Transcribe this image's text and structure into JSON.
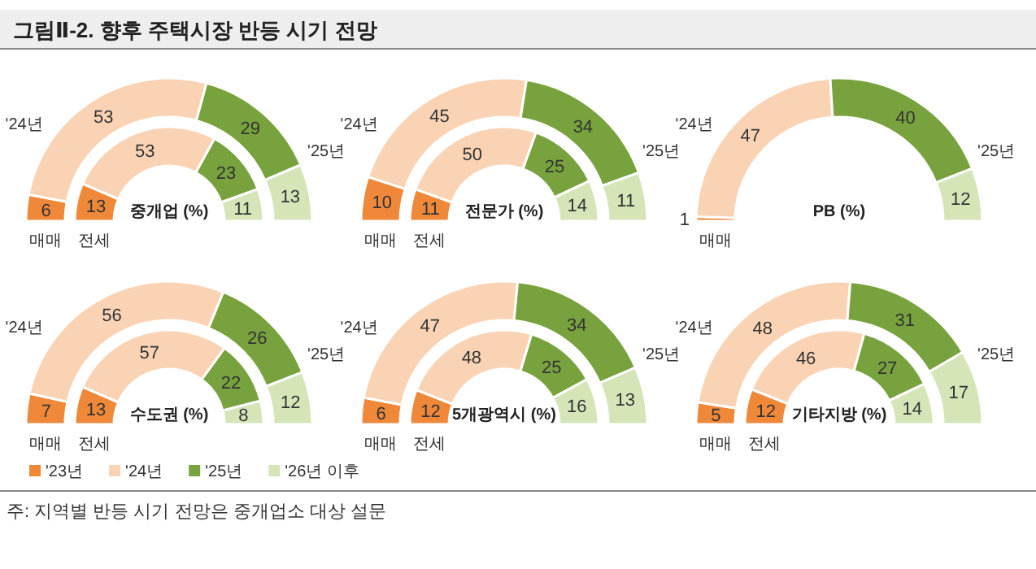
{
  "chart_data": [
    {
      "type": "donut",
      "title": "그림Ⅱ-2. 향후 주택시장 반등 시기  전망",
      "subtitle": "중개업 (%)",
      "colors": [
        "#f0883a",
        "#fad3b4",
        "#78a23e",
        "#d5e5b8"
      ],
      "data_labels": true,
      "annotations": [
        "'24년",
        "'25년"
      ],
      "series": [
        {
          "name": "매매",
          "values": [
            6,
            53,
            29,
            13
          ]
        },
        {
          "name": "전세",
          "values": [
            13,
            53,
            23,
            11
          ]
        }
      ]
    },
    {
      "type": "donut",
      "subtitle": "전문가 (%)",
      "colors": [
        "#f0883a",
        "#fad3b4",
        "#78a23e",
        "#d5e5b8"
      ],
      "data_labels": true,
      "annotations": [
        "'24년",
        "'25년"
      ],
      "series": [
        {
          "name": "매매",
          "values": [
            10,
            45,
            34,
            11
          ]
        },
        {
          "name": "전세",
          "values": [
            11,
            50,
            25,
            14
          ]
        }
      ]
    },
    {
      "type": "donut",
      "subtitle": "PB (%)",
      "colors": [
        "#f0883a",
        "#fad3b4",
        "#78a23e",
        "#d5e5b8"
      ],
      "data_labels": true,
      "annotations": [
        "'24년",
        "'25년"
      ],
      "series": [
        {
          "name": "매매",
          "values": [
            1,
            47,
            40,
            12
          ]
        }
      ]
    },
    {
      "type": "donut",
      "subtitle": "수도권 (%)",
      "categories": [
        "'23년",
        "'24년",
        "'25년",
        "'26년 이후"
      ],
      "colors": [
        "#f0883a",
        "#fad3b4",
        "#78a23e",
        "#d5e5b8"
      ],
      "data_labels": true,
      "legend": "bottom",
      "annotations": [
        "'24년",
        "'25년",
        "주: 지역별 반등 시기 전망은 중개업소 대상 설문"
      ],
      "series": [
        {
          "name": "매매",
          "values": [
            7,
            56,
            26,
            12
          ]
        },
        {
          "name": "전세",
          "values": [
            13,
            57,
            22,
            8
          ]
        }
      ]
    },
    {
      "type": "donut",
      "subtitle": "5개광역시 (%)",
      "colors": [
        "#f0883a",
        "#fad3b4",
        "#78a23e",
        "#d5e5b8"
      ],
      "data_labels": true,
      "annotations": [
        "'24년",
        "'25년"
      ],
      "series": [
        {
          "name": "매매",
          "values": [
            6,
            47,
            34,
            13
          ]
        },
        {
          "name": "전세",
          "values": [
            12,
            48,
            25,
            16
          ]
        }
      ]
    },
    {
      "type": "donut",
      "subtitle": "기타지방 (%)",
      "colors": [
        "#f0883a",
        "#fad3b4",
        "#78a23e",
        "#d5e5b8"
      ],
      "data_labels": true,
      "annotations": [
        "'24년",
        "'25년"
      ],
      "series": [
        {
          "name": "매매",
          "values": [
            5,
            48,
            31,
            17
          ]
        },
        {
          "name": "전세",
          "values": [
            12,
            46,
            27,
            14
          ]
        }
      ]
    }
  ]
}
